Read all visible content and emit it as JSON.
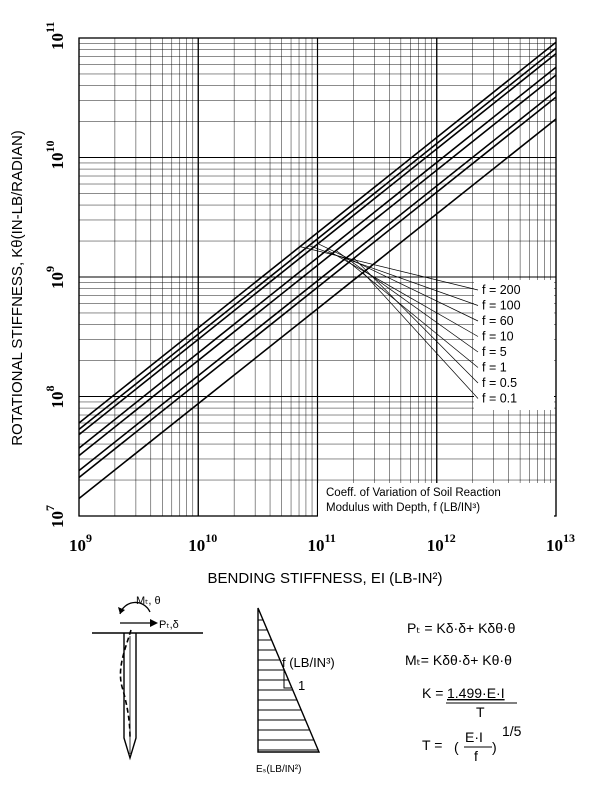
{
  "chart_data": {
    "type": "line",
    "title": "",
    "xlabel": "BENDING STIFFNESS, EI (LB-IN²)",
    "ylabel": "ROTATIONAL STIFFNESS, Kθ(IN-LB/RADIAN)",
    "xscale": "log",
    "yscale": "log",
    "xlim": [
      1000000000.0,
      10000000000000.0
    ],
    "ylim": [
      10000000.0,
      100000000000.0
    ],
    "grid": true,
    "x_tick_labels": [
      {
        "base": "10",
        "exp": "9"
      },
      {
        "base": "10",
        "exp": "10"
      },
      {
        "base": "10",
        "exp": "11"
      },
      {
        "base": "10",
        "exp": "12"
      },
      {
        "base": "10",
        "exp": "13"
      }
    ],
    "y_tick_labels": [
      {
        "base": "10",
        "exp": "7"
      },
      {
        "base": "10",
        "exp": "8"
      },
      {
        "base": "10",
        "exp": "9"
      },
      {
        "base": "10",
        "exp": "10"
      },
      {
        "base": "10",
        "exp": "11"
      }
    ],
    "legend_title_lines": [
      "Coeff. of Variation of Soil Reaction",
      "Modulus with Depth, f (LB/IN³)"
    ],
    "legend_placement": "right",
    "series": [
      {
        "name": "f = 200",
        "x": [
          1000000000.0,
          10000000000000.0
        ],
        "y": [
          60000000.0,
          92000000000.0
        ]
      },
      {
        "name": "f = 100",
        "x": [
          1000000000.0,
          10000000000000.0
        ],
        "y": [
          53000000.0,
          82000000000.0
        ]
      },
      {
        "name": "f = 60",
        "x": [
          1000000000.0,
          10000000000000.0
        ],
        "y": [
          48000000.0,
          74000000000.0
        ]
      },
      {
        "name": "f = 10",
        "x": [
          1000000000.0,
          10000000000000.0
        ],
        "y": [
          37000000.0,
          57000000000.0
        ]
      },
      {
        "name": "f = 5",
        "x": [
          1000000000.0,
          10000000000000.0
        ],
        "y": [
          32000000.0,
          49000000000.0
        ]
      },
      {
        "name": "f = 1",
        "x": [
          1000000000.0,
          10000000000000.0
        ],
        "y": [
          24000000.0,
          36000000000.0
        ]
      },
      {
        "name": "f = 0.5",
        "x": [
          1000000000.0,
          10000000000000.0
        ],
        "y": [
          21000000.0,
          32000000000.0
        ]
      },
      {
        "name": "f = 0.1",
        "x": [
          1000000000.0,
          10000000000000.0
        ],
        "y": [
          14000000.0,
          21000000000.0
        ]
      }
    ]
  },
  "diagram": {
    "moment_label": "Mₜ, θ",
    "force_label": "Pₜ,δ",
    "soil_label": "f (LB/IN³)",
    "slope_label": "1",
    "es_label": "Eₛ(LB/IN²)"
  },
  "equations": {
    "pt": "Pₜ = Kδ·δ+ Kδθ·θ",
    "mt": "Mₜ= Kδθ·δ+ Kθ·θ",
    "k_lhs": "K =",
    "k_num": "1.499·E·I",
    "k_den": "T",
    "t_lhs": "T =",
    "t_num": "E·I",
    "t_den": "f",
    "t_exp": "1/5"
  }
}
